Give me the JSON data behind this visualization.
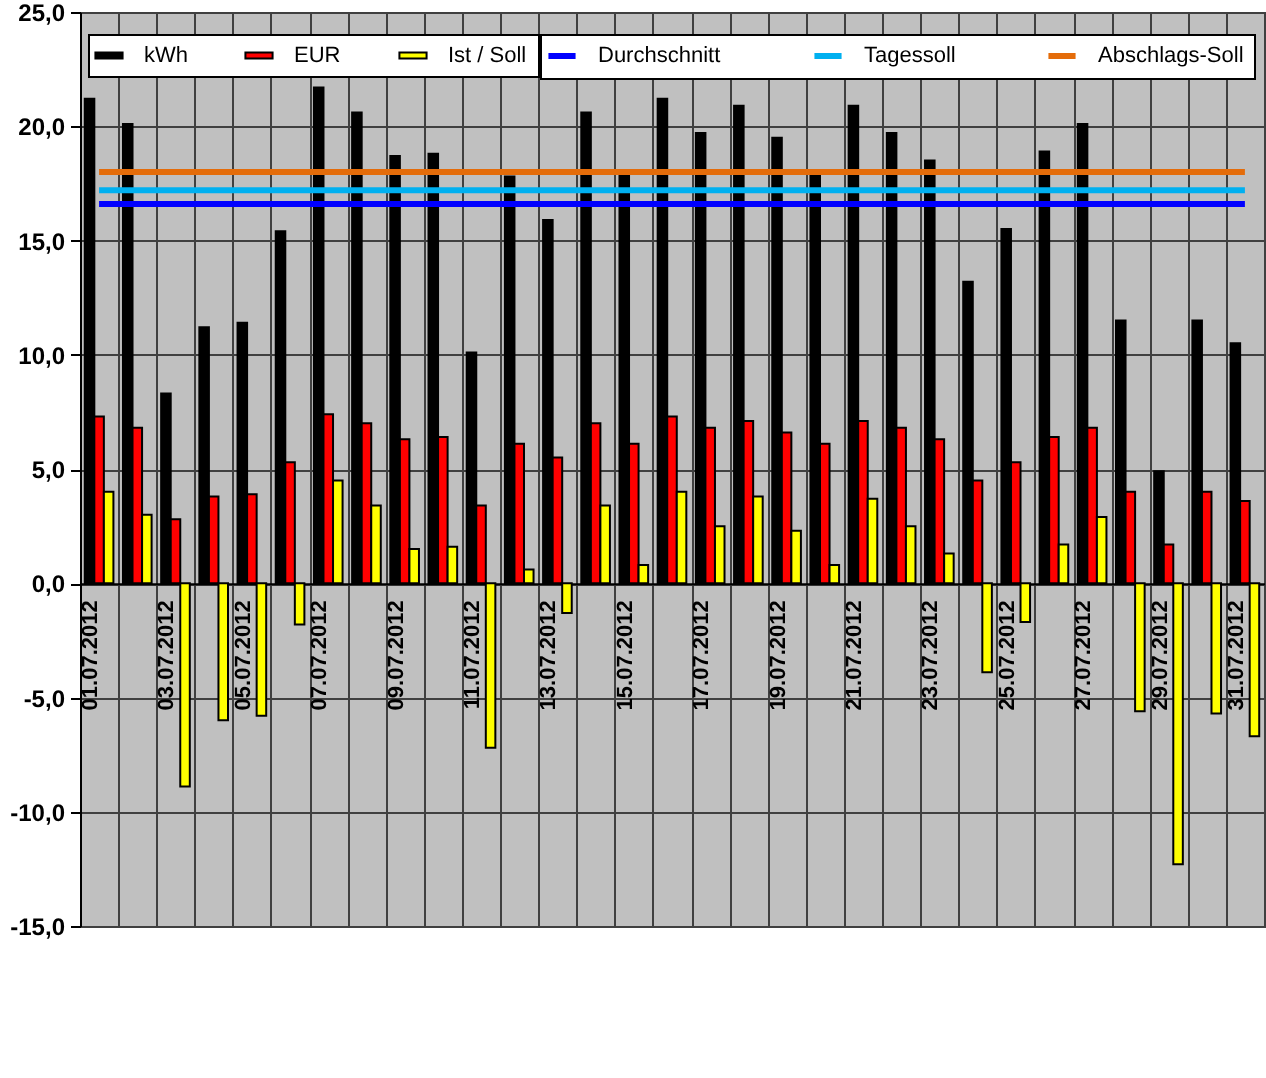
{
  "chart_data": {
    "type": "bar",
    "categories": [
      "01.07.2012",
      null,
      "03.07.2012",
      null,
      "05.07.2012",
      null,
      "07.07.2012",
      null,
      "09.07.2012",
      null,
      "11.07.2012",
      null,
      "13.07.2012",
      null,
      "15.07.2012",
      null,
      "17.07.2012",
      null,
      "19.07.2012",
      null,
      "21.07.2012",
      null,
      "23.07.2012",
      null,
      "25.07.2012",
      null,
      "27.07.2012",
      null,
      "29.07.2012",
      null,
      "31.07.2012"
    ],
    "series": [
      {
        "name": "kWh",
        "color": "#000000",
        "values": [
          21.2,
          20.1,
          8.3,
          11.2,
          11.4,
          15.4,
          21.7,
          20.6,
          18.7,
          18.8,
          10.1,
          17.8,
          15.9,
          20.6,
          17.9,
          21.2,
          19.7,
          20.9,
          19.5,
          17.9,
          20.9,
          19.7,
          18.5,
          13.2,
          15.5,
          18.9,
          20.1,
          11.5,
          4.9,
          11.5,
          10.5
        ]
      },
      {
        "name": "EUR",
        "color": "#ff0000",
        "values": [
          7.3,
          6.8,
          2.8,
          3.8,
          3.9,
          5.3,
          7.4,
          7.0,
          6.3,
          6.4,
          3.4,
          6.1,
          5.5,
          7.0,
          6.1,
          7.3,
          6.8,
          7.1,
          6.6,
          6.1,
          7.1,
          6.8,
          6.3,
          4.5,
          5.3,
          6.4,
          6.8,
          4.0,
          1.7,
          4.0,
          3.6
        ]
      },
      {
        "name": "Ist / Soll",
        "color": "#ffff00",
        "values": [
          4.0,
          3.0,
          -8.9,
          -6.0,
          -5.8,
          -1.8,
          4.5,
          3.4,
          1.5,
          1.6,
          -7.2,
          0.6,
          -1.3,
          3.4,
          0.8,
          4.0,
          2.5,
          3.8,
          2.3,
          0.8,
          3.7,
          2.5,
          1.3,
          -3.9,
          -1.7,
          1.7,
          2.9,
          -5.6,
          -12.3,
          -5.7,
          -6.7
        ]
      },
      {
        "name": "Durchschnitt",
        "type": "line",
        "color": "#0000ff",
        "values": [
          16.6,
          16.6,
          16.6,
          16.6,
          16.6,
          16.6,
          16.6,
          16.6,
          16.6,
          16.6,
          16.6,
          16.6,
          16.6,
          16.6,
          16.6,
          16.6,
          16.6,
          16.6,
          16.6,
          16.6,
          16.6,
          16.6,
          16.6,
          16.6,
          16.6,
          16.6,
          16.6,
          16.6,
          16.6,
          16.6,
          16.6
        ]
      },
      {
        "name": "Tagessoll",
        "type": "line",
        "color": "#00b0f0",
        "values": [
          17.2,
          17.2,
          17.2,
          17.2,
          17.2,
          17.2,
          17.2,
          17.2,
          17.2,
          17.2,
          17.2,
          17.2,
          17.2,
          17.2,
          17.2,
          17.2,
          17.2,
          17.2,
          17.2,
          17.2,
          17.2,
          17.2,
          17.2,
          17.2,
          17.2,
          17.2,
          17.2,
          17.2,
          17.2,
          17.2,
          17.2
        ]
      },
      {
        "name": "Abschlags-Soll",
        "type": "line",
        "color": "#e46c0a",
        "values": [
          18.0,
          18.0,
          18.0,
          18.0,
          18.0,
          18.0,
          18.0,
          18.0,
          18.0,
          18.0,
          18.0,
          18.0,
          18.0,
          18.0,
          18.0,
          18.0,
          18.0,
          18.0,
          18.0,
          18.0,
          18.0,
          18.0,
          18.0,
          18.0,
          18.0,
          18.0,
          18.0,
          18.0,
          18.0,
          18.0,
          18.0
        ]
      }
    ],
    "ylim": [
      -15,
      25
    ],
    "yticks": [
      {
        "value": -15,
        "label": "-15,0"
      },
      {
        "value": -10,
        "label": "-10,0"
      },
      {
        "value": -5,
        "label": "-5,0"
      },
      {
        "value": 0,
        "label": "0,0"
      },
      {
        "value": 5,
        "label": "5,0"
      },
      {
        "value": 10,
        "label": "10,0"
      },
      {
        "value": 15,
        "label": "15,0"
      },
      {
        "value": 20,
        "label": "20,0"
      },
      {
        "value": 25,
        "label": "25,0"
      }
    ],
    "grid": true,
    "legend": "top"
  }
}
